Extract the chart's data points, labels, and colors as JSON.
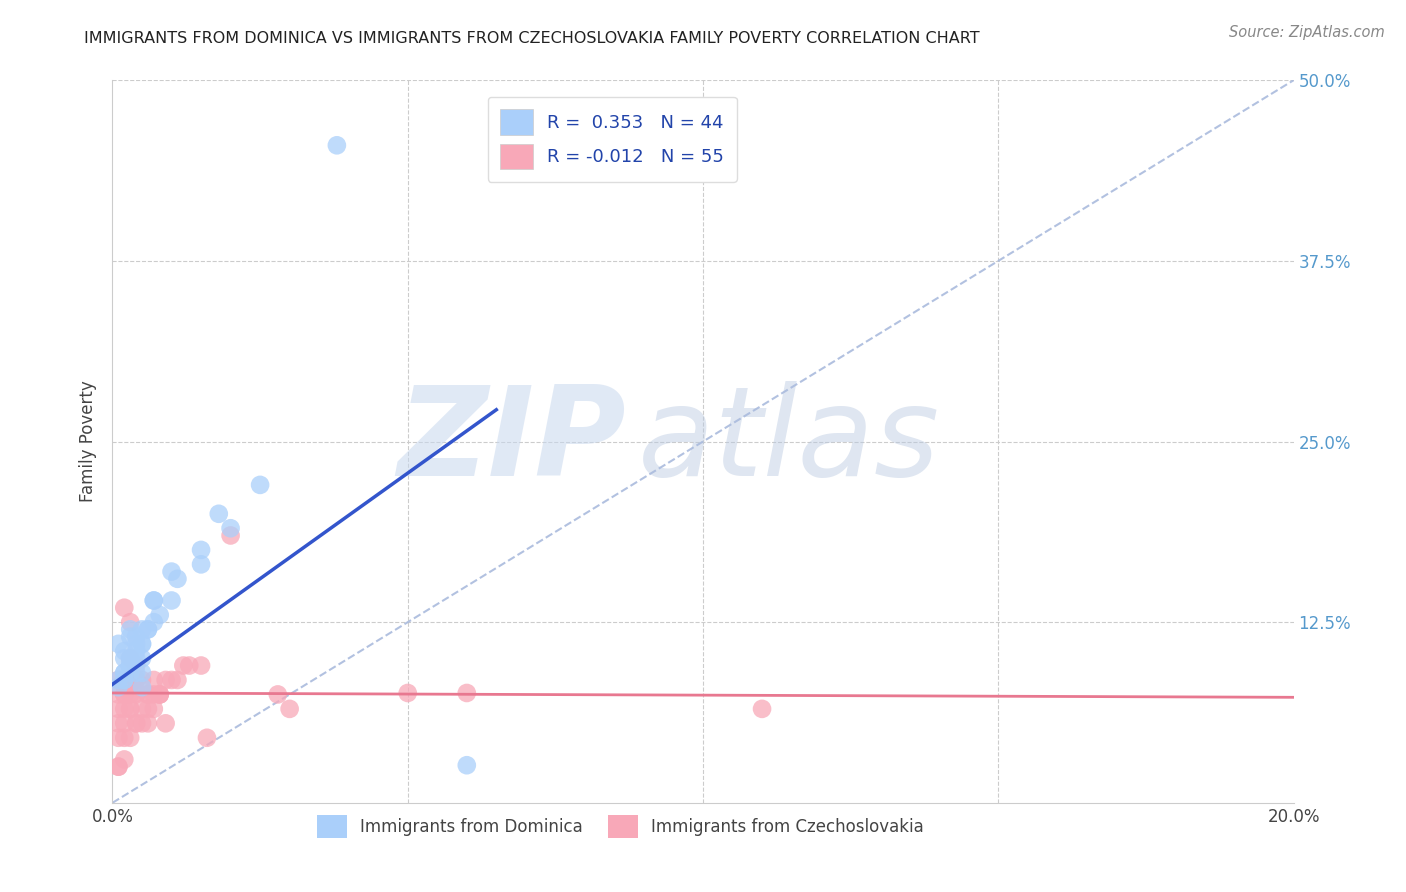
{
  "title": "IMMIGRANTS FROM DOMINICA VS IMMIGRANTS FROM CZECHOSLOVAKIA FAMILY POVERTY CORRELATION CHART",
  "source": "Source: ZipAtlas.com",
  "ylabel": "Family Poverty",
  "xlim": [
    0.0,
    0.2
  ],
  "ylim": [
    0.0,
    0.5
  ],
  "xticks": [
    0.0,
    0.05,
    0.1,
    0.15,
    0.2
  ],
  "yticks": [
    0.0,
    0.125,
    0.25,
    0.375,
    0.5
  ],
  "dominica_R": 0.353,
  "dominica_N": 44,
  "czech_R": -0.012,
  "czech_N": 55,
  "legend_label1": "Immigrants from Dominica",
  "legend_label2": "Immigrants from Czechoslovakia",
  "watermark_zip": "ZIP",
  "watermark_atlas": "atlas",
  "dot_color_blue": "#aacffa",
  "dot_color_pink": "#f8a8b8",
  "line_color_blue": "#3355cc",
  "line_color_pink": "#e87890",
  "diag_color": "#aabbdd",
  "background_color": "#ffffff",
  "grid_color": "#cccccc",
  "right_tick_color": "#5599cc",
  "dom_line_x0": 0.0,
  "dom_line_y0": 0.082,
  "dom_line_x1": 0.065,
  "dom_line_y1": 0.272,
  "czech_line_x0": 0.0,
  "czech_line_y0": 0.076,
  "czech_line_x1": 0.2,
  "czech_line_y1": 0.073,
  "dom_x": [
    0.001,
    0.002,
    0.002,
    0.003,
    0.003,
    0.004,
    0.003,
    0.004,
    0.005,
    0.005,
    0.001,
    0.002,
    0.003,
    0.004,
    0.005,
    0.006,
    0.003,
    0.002,
    0.001,
    0.002,
    0.007,
    0.006,
    0.005,
    0.004,
    0.003,
    0.01,
    0.007,
    0.005,
    0.003,
    0.002,
    0.015,
    0.011,
    0.008,
    0.005,
    0.003,
    0.02,
    0.015,
    0.01,
    0.007,
    0.004,
    0.025,
    0.018,
    0.06,
    0.038
  ],
  "dom_y": [
    0.11,
    0.1,
    0.09,
    0.12,
    0.09,
    0.11,
    0.1,
    0.09,
    0.1,
    0.08,
    0.08,
    0.085,
    0.095,
    0.115,
    0.09,
    0.12,
    0.115,
    0.09,
    0.085,
    0.105,
    0.14,
    0.12,
    0.11,
    0.1,
    0.095,
    0.16,
    0.14,
    0.12,
    0.1,
    0.085,
    0.175,
    0.155,
    0.13,
    0.11,
    0.095,
    0.19,
    0.165,
    0.14,
    0.125,
    0.105,
    0.22,
    0.2,
    0.026,
    0.455
  ],
  "czech_x": [
    0.001,
    0.001,
    0.002,
    0.002,
    0.003,
    0.003,
    0.004,
    0.004,
    0.005,
    0.005,
    0.006,
    0.006,
    0.007,
    0.007,
    0.008,
    0.001,
    0.002,
    0.003,
    0.004,
    0.005,
    0.01,
    0.008,
    0.006,
    0.004,
    0.002,
    0.012,
    0.009,
    0.006,
    0.003,
    0.001,
    0.015,
    0.011,
    0.007,
    0.004,
    0.002,
    0.02,
    0.013,
    0.008,
    0.004,
    0.001,
    0.028,
    0.016,
    0.009,
    0.003,
    0.05,
    0.03,
    0.002,
    0.001,
    0.003,
    0.002,
    0.06,
    0.001,
    0.11,
    0.004,
    0.003
  ],
  "czech_y": [
    0.065,
    0.055,
    0.075,
    0.045,
    0.085,
    0.065,
    0.075,
    0.055,
    0.085,
    0.065,
    0.075,
    0.055,
    0.085,
    0.065,
    0.075,
    0.045,
    0.065,
    0.075,
    0.085,
    0.055,
    0.085,
    0.075,
    0.065,
    0.055,
    0.075,
    0.095,
    0.085,
    0.075,
    0.065,
    0.085,
    0.095,
    0.085,
    0.075,
    0.085,
    0.055,
    0.185,
    0.095,
    0.075,
    0.095,
    0.075,
    0.075,
    0.045,
    0.055,
    0.125,
    0.076,
    0.065,
    0.03,
    0.025,
    0.1,
    0.135,
    0.076,
    0.025,
    0.065,
    0.076,
    0.045
  ]
}
